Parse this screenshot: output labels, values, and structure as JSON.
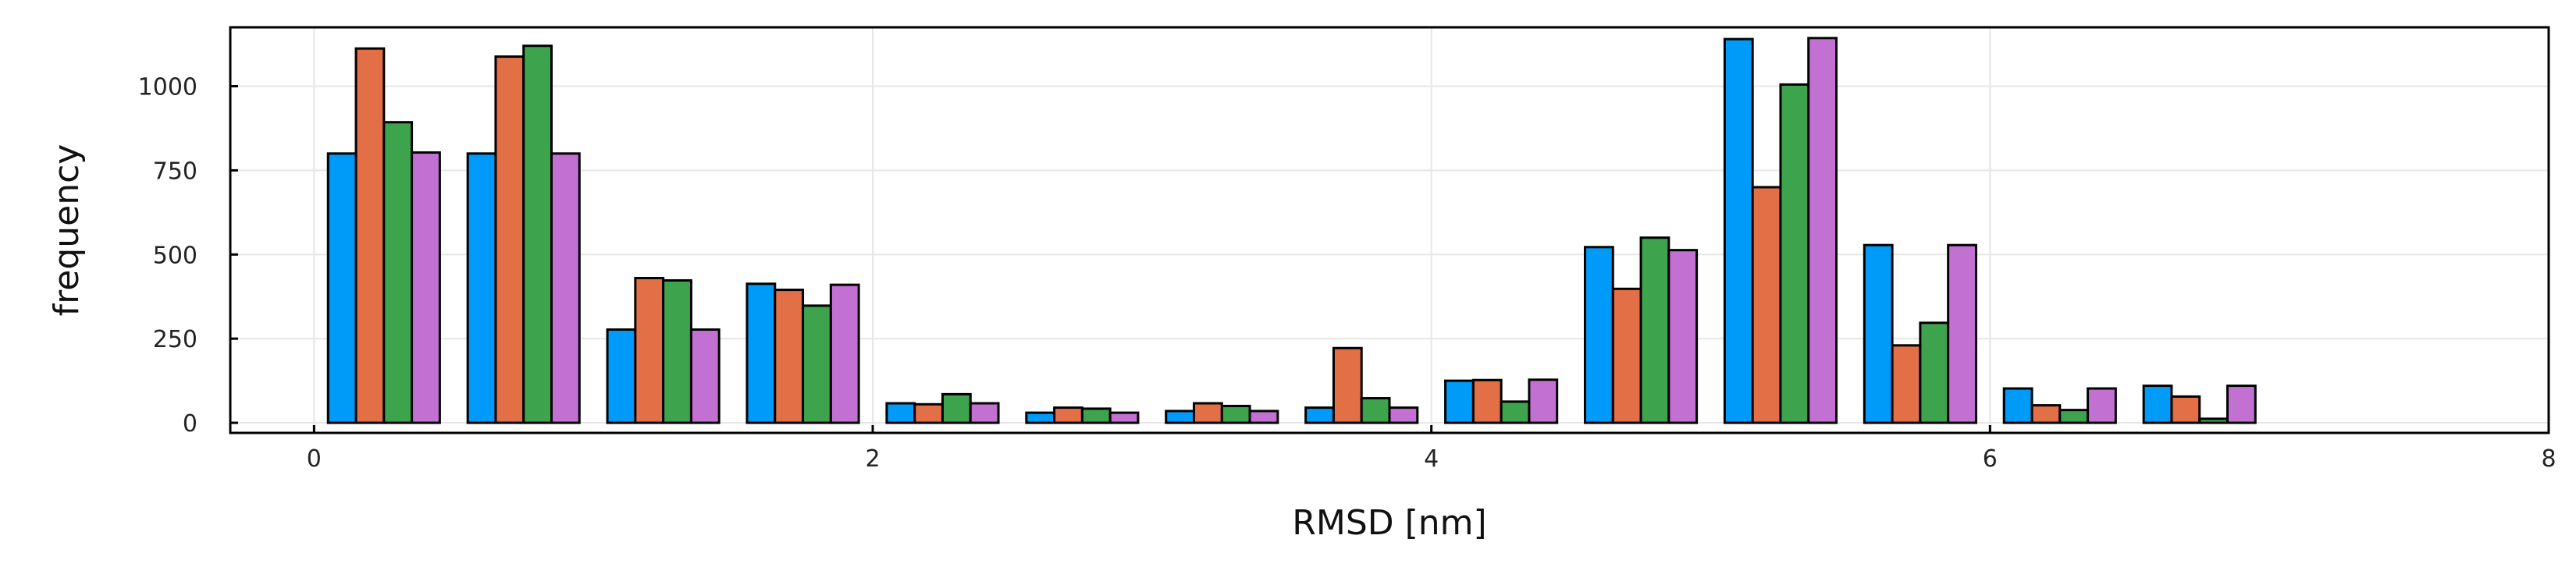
{
  "chart_data": {
    "type": "bar",
    "title": "",
    "xlabel": "RMSD [nm]",
    "ylabel": "frequency",
    "xlim": [
      -0.3,
      8
    ],
    "ylim": [
      -30,
      1175
    ],
    "xticks": [
      0,
      2,
      4,
      6,
      8
    ],
    "xtick_labels": [
      "0",
      "2",
      "4",
      "6",
      "8"
    ],
    "yticks": [
      0,
      250,
      500,
      750,
      1000
    ],
    "ytick_labels": [
      "0",
      "250",
      "500",
      "750",
      "1000"
    ],
    "grid": true,
    "legend": "none",
    "bin_width": 0.5,
    "bin_starts": [
      0,
      0.5,
      1.0,
      1.5,
      2.0,
      2.5,
      3.0,
      3.5,
      4.0,
      4.5,
      5.0,
      5.5,
      6.0,
      6.5
    ],
    "series": [
      {
        "color": "#009af9",
        "values": [
          800,
          800,
          277,
          413,
          58,
          30,
          35,
          45,
          125,
          522,
          1140,
          528,
          102,
          110
        ]
      },
      {
        "color": "#e26f46",
        "values": [
          1112,
          1088,
          430,
          395,
          55,
          45,
          58,
          222,
          127,
          398,
          700,
          230,
          52,
          78
        ]
      },
      {
        "color": "#3da44d",
        "values": [
          893,
          1120,
          423,
          348,
          85,
          42,
          50,
          73,
          63,
          550,
          1005,
          297,
          38,
          12
        ]
      },
      {
        "color": "#c271d2",
        "values": [
          803,
          800,
          277,
          410,
          58,
          30,
          35,
          45,
          128,
          513,
          1143,
          528,
          102,
          110
        ]
      }
    ]
  }
}
